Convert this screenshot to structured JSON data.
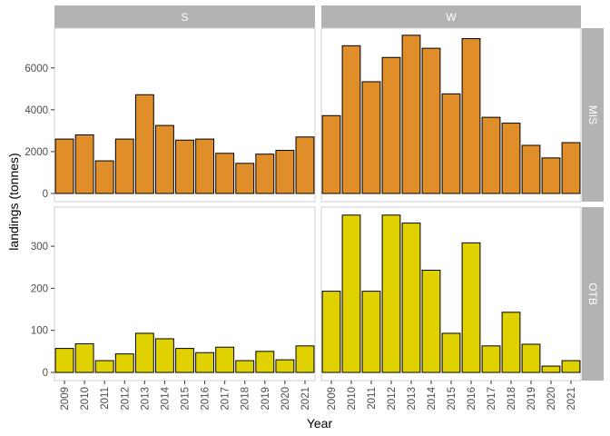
{
  "chart_data": {
    "type": "bar",
    "xlabel": "Year",
    "ylabel": "landings (tonnes)",
    "categories": [
      "2009",
      "2010",
      "2011",
      "2012",
      "2013",
      "2014",
      "2015",
      "2016",
      "2017",
      "2018",
      "2019",
      "2020",
      "2021"
    ],
    "columns": [
      "S",
      "W"
    ],
    "rows": [
      {
        "name": "MIS",
        "color": "#e08e29",
        "ylim": [
          0,
          7900
        ],
        "yticks": [
          0,
          2000,
          4000,
          6000
        ],
        "panels": {
          "S": [
            2600,
            2800,
            1560,
            2600,
            4720,
            3250,
            2550,
            2600,
            1920,
            1440,
            1880,
            2060,
            2700
          ],
          "W": [
            3720,
            7060,
            5340,
            6500,
            7560,
            6940,
            4760,
            7400,
            3640,
            3360,
            2300,
            1700,
            2430
          ]
        }
      },
      {
        "name": "OTB",
        "color": "#e0d100",
        "ylim": [
          0,
          393
        ],
        "yticks": [
          0,
          100,
          200,
          300
        ],
        "panels": {
          "S": [
            57,
            68,
            28,
            44,
            93,
            80,
            57,
            47,
            60,
            28,
            50,
            30,
            63
          ],
          "W": [
            193,
            374,
            193,
            374,
            355,
            243,
            93,
            308,
            63,
            143,
            67,
            15,
            28
          ]
        }
      }
    ]
  }
}
